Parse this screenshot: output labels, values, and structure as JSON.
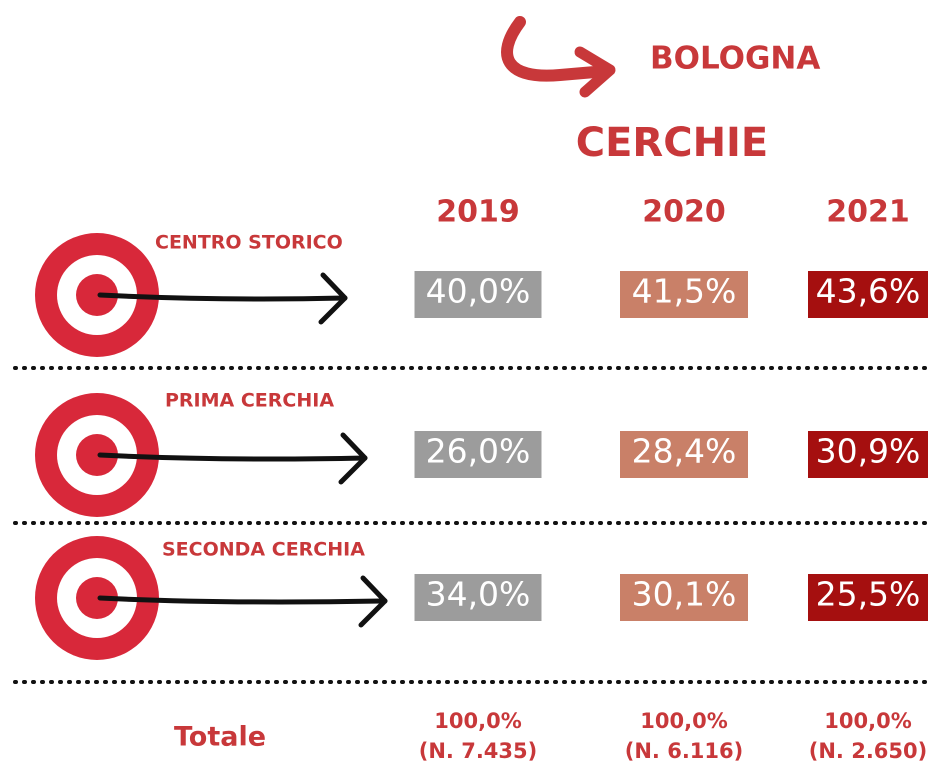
{
  "header": {
    "city": "BOLOGNA",
    "title": "CERCHIE"
  },
  "years": [
    "2019",
    "2020",
    "2021"
  ],
  "rows": [
    {
      "label": "CENTRO STORICO",
      "values": [
        "40,0%",
        "41,5%",
        "43,6%"
      ]
    },
    {
      "label": "PRIMA CERCHIA",
      "values": [
        "26,0%",
        "28,4%",
        "30,9%"
      ]
    },
    {
      "label": "SECONDA CERCHIA",
      "values": [
        "34,0%",
        "30,1%",
        "25,5%"
      ]
    }
  ],
  "totals": {
    "label": "Totale",
    "values": [
      "100,0%",
      "100,0%",
      "100,0%"
    ],
    "counts": [
      "(N. 7.435)",
      "(N. 6.116)",
      "(N. 2.650)"
    ]
  }
}
